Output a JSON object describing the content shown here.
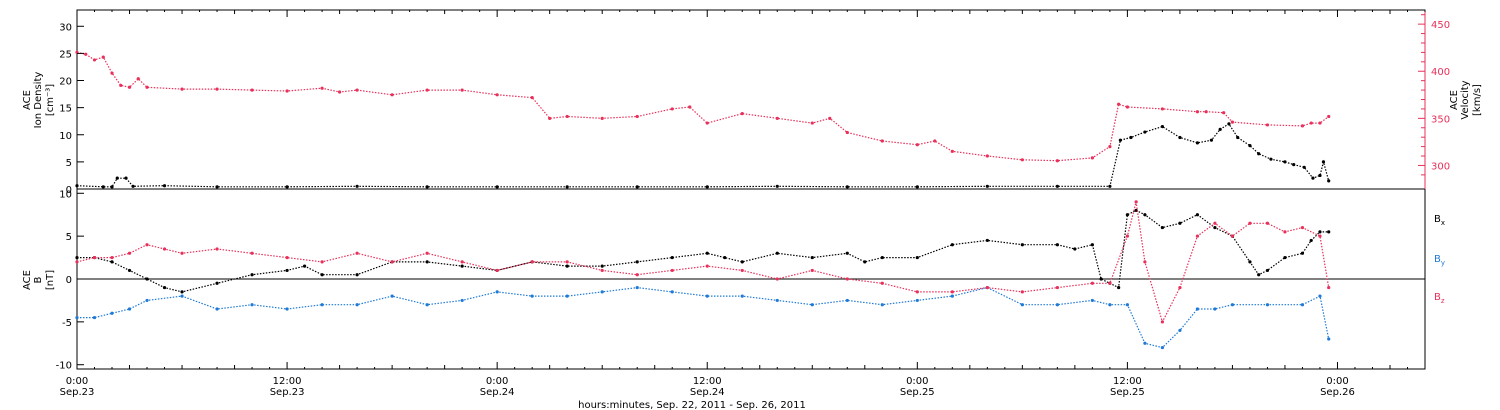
{
  "colors": {
    "black": "#000000",
    "pink": "#e8305a",
    "blue": "#1f7ad6"
  },
  "x_axis": {
    "tick_labels": [
      {
        "time": "0:00",
        "date": "Sep.23",
        "hours": 0
      },
      {
        "time": "12:00",
        "date": "Sep.23",
        "hours": 12
      },
      {
        "time": "0:00",
        "date": "Sep.24",
        "hours": 24
      },
      {
        "time": "12:00",
        "date": "Sep.24",
        "hours": 36
      },
      {
        "time": "0:00",
        "date": "Sep.25",
        "hours": 48
      },
      {
        "time": "12:00",
        "date": "Sep.25",
        "hours": 60
      },
      {
        "time": "0:00",
        "date": "Sep.26",
        "hours": 72
      }
    ],
    "caption": "hours:minutes, Sep. 22, 2011 - Sep. 26, 2011"
  },
  "chart_data": [
    {
      "type": "scatter",
      "panel": "top",
      "left_axis_label": [
        "ACE",
        "Ion Density",
        "[cm⁻³]"
      ],
      "right_axis_label": [
        "ACE",
        "Velocity",
        "[km/s]"
      ],
      "ylim_left": [
        0,
        33
      ],
      "ylim_right": [
        275,
        465
      ],
      "yticks_left": [
        0,
        5,
        10,
        15,
        20,
        25,
        30
      ],
      "yticks_right": [
        300,
        350,
        400,
        450
      ],
      "xlim_hours": [
        0,
        77
      ],
      "series": [
        {
          "axis": "left",
          "color": "black",
          "x": [
            0,
            1.5,
            2,
            2.3,
            2.8,
            3.2,
            5,
            8,
            12,
            16,
            20,
            24,
            28,
            32,
            36,
            40,
            44,
            48,
            52,
            56,
            59,
            59.6,
            60.2,
            61,
            62,
            63,
            64,
            64.8,
            65.3,
            65.8,
            66.3,
            67,
            67.5,
            68.2,
            69,
            69.5,
            70.1,
            70.6,
            71,
            71.2,
            71.5
          ],
          "y": [
            0.6,
            0.4,
            0.4,
            2.0,
            2.0,
            0.5,
            0.6,
            0.4,
            0.4,
            0.5,
            0.4,
            0.4,
            0.4,
            0.4,
            0.4,
            0.5,
            0.4,
            0.4,
            0.5,
            0.5,
            0.5,
            9.0,
            9.5,
            10.5,
            11.5,
            9.5,
            8.5,
            9.0,
            11.0,
            12.0,
            9.5,
            8.0,
            6.5,
            5.5,
            5.0,
            4.5,
            4.0,
            2.0,
            2.5,
            5.0,
            1.5
          ]
        },
        {
          "axis": "right",
          "color": "pink",
          "x": [
            0,
            0.5,
            1,
            1.5,
            2,
            2.5,
            3,
            3.5,
            4,
            6,
            8,
            10,
            12,
            14,
            15,
            16,
            18,
            20,
            22,
            24,
            26,
            27,
            28,
            30,
            32,
            34,
            35,
            36,
            38,
            40,
            42,
            43,
            44,
            46,
            48,
            49,
            50,
            52,
            54,
            56,
            58,
            59,
            59.5,
            60,
            62,
            64,
            64.5,
            65.5,
            66,
            68,
            70,
            70.5,
            71,
            71.5
          ],
          "y": [
            420,
            418,
            412,
            415,
            398,
            385,
            383,
            392,
            383,
            381,
            381,
            380,
            379,
            382,
            378,
            380,
            375,
            380,
            380,
            375,
            372,
            350,
            352,
            350,
            352,
            360,
            362,
            345,
            355,
            350,
            345,
            350,
            335,
            326,
            322,
            326,
            315,
            310,
            306,
            305,
            308,
            320,
            365,
            362,
            360,
            357,
            357,
            356,
            346,
            343,
            342,
            345,
            345,
            352
          ]
        }
      ]
    },
    {
      "type": "scatter",
      "panel": "bottom",
      "left_axis_label": [
        "ACE",
        "B",
        "[nT]"
      ],
      "ylim": [
        -10.5,
        10.5
      ],
      "yticks": [
        -10,
        -5,
        0,
        5,
        10
      ],
      "xlim_hours": [
        0,
        77
      ],
      "series": [
        {
          "name": "Bx",
          "label": "B",
          "subscript": "x",
          "color": "black",
          "x": [
            0,
            1,
            2,
            3,
            4,
            5,
            6,
            8,
            10,
            12,
            13,
            14,
            16,
            18,
            20,
            22,
            24,
            26,
            28,
            30,
            32,
            34,
            36,
            37,
            38,
            40,
            42,
            44,
            45,
            46,
            48,
            50,
            52,
            54,
            56,
            57,
            58,
            58.5,
            59,
            59.5,
            60,
            60.5,
            61,
            62,
            63,
            64,
            65,
            66,
            67,
            67.5,
            68,
            69,
            70,
            70.5,
            71,
            71.5
          ],
          "y": [
            2.5,
            2.5,
            2.0,
            1.0,
            0,
            -1.0,
            -1.5,
            -0.5,
            0.5,
            1.0,
            1.5,
            0.5,
            0.5,
            2.0,
            2.0,
            1.5,
            1.0,
            2.0,
            1.5,
            1.5,
            2.0,
            2.5,
            3.0,
            2.5,
            2.0,
            3.0,
            2.5,
            3.0,
            2.0,
            2.5,
            2.5,
            4.0,
            4.5,
            4.0,
            4.0,
            3.5,
            4.0,
            0,
            -0.5,
            -1.0,
            7.5,
            8.0,
            7.5,
            6.0,
            6.5,
            7.5,
            6.0,
            5.0,
            2.0,
            0.5,
            1.0,
            2.5,
            3.0,
            4.5,
            5.5,
            5.5
          ]
        },
        {
          "name": "By",
          "label": "B",
          "subscript": "y",
          "color": "blue",
          "x": [
            0,
            1,
            2,
            3,
            4,
            6,
            8,
            10,
            12,
            14,
            16,
            18,
            20,
            22,
            24,
            26,
            28,
            30,
            32,
            34,
            36,
            38,
            40,
            42,
            44,
            46,
            48,
            50,
            52,
            54,
            56,
            58,
            59,
            60,
            61,
            62,
            63,
            64,
            65,
            66,
            68,
            70,
            71,
            71.5
          ],
          "y": [
            -4.5,
            -4.5,
            -4.0,
            -3.5,
            -2.5,
            -2.0,
            -3.5,
            -3.0,
            -3.5,
            -3.0,
            -3.0,
            -2.0,
            -3.0,
            -2.5,
            -1.5,
            -2.0,
            -2.0,
            -1.5,
            -1.0,
            -1.5,
            -2.0,
            -2.0,
            -2.5,
            -3.0,
            -2.5,
            -3.0,
            -2.5,
            -2.0,
            -1.0,
            -3.0,
            -3.0,
            -2.5,
            -3.0,
            -3.0,
            -7.5,
            -8.0,
            -6.0,
            -3.5,
            -3.5,
            -3.0,
            -3.0,
            -3.0,
            -2.0,
            -7.0
          ]
        },
        {
          "name": "Bz",
          "label": "B",
          "subscript": "z",
          "color": "pink",
          "x": [
            0,
            1,
            2,
            3,
            4,
            5,
            6,
            8,
            10,
            12,
            14,
            16,
            18,
            20,
            22,
            24,
            26,
            28,
            30,
            32,
            34,
            36,
            38,
            40,
            42,
            44,
            46,
            48,
            50,
            52,
            54,
            56,
            58,
            59,
            60,
            60.5,
            61,
            62,
            63,
            64,
            65,
            66,
            67,
            68,
            69,
            70,
            71,
            71.5
          ],
          "y": [
            2.0,
            2.5,
            2.5,
            3.0,
            4.0,
            3.5,
            3.0,
            3.5,
            3.0,
            2.5,
            2.0,
            3.0,
            2.0,
            3.0,
            2.0,
            1.0,
            2.0,
            2.0,
            1.0,
            0.5,
            1.0,
            1.5,
            1.0,
            0,
            1.0,
            0,
            -0.5,
            -1.5,
            -1.5,
            -1.0,
            -1.5,
            -1.0,
            -0.5,
            -0.5,
            5.0,
            9.0,
            2.0,
            -5.0,
            -1.0,
            5.0,
            6.5,
            5.0,
            6.5,
            6.5,
            5.5,
            6.0,
            5.0,
            -1.0
          ]
        }
      ]
    }
  ]
}
